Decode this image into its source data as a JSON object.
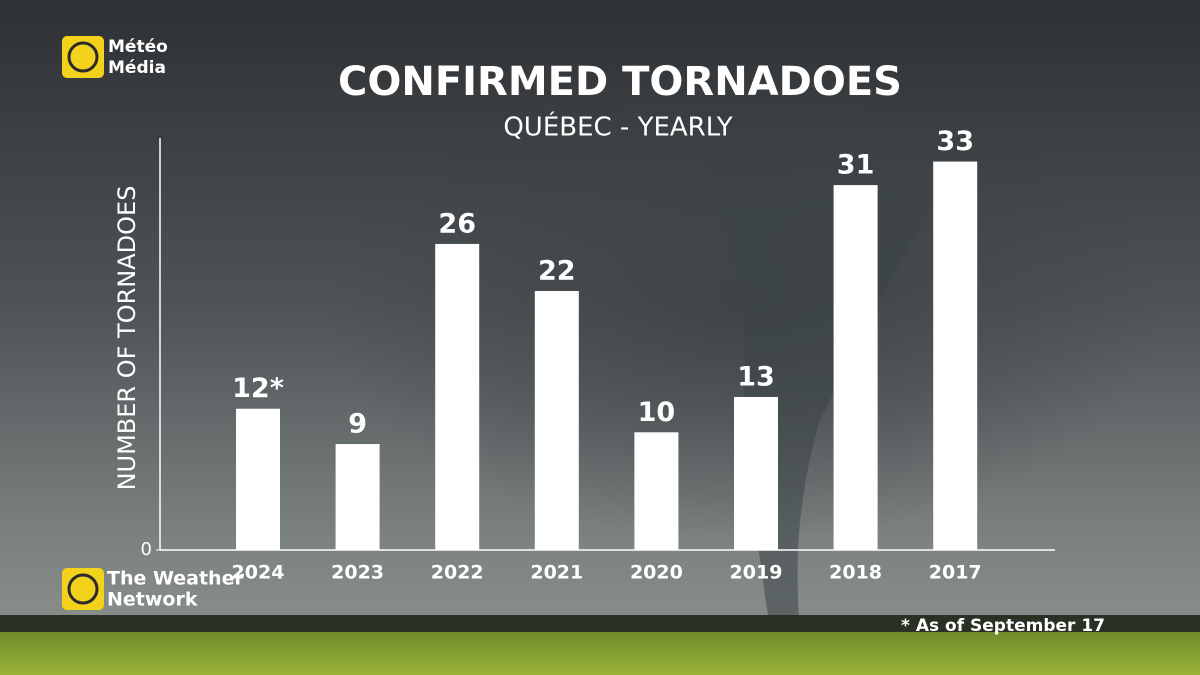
{
  "chart_data": {
    "type": "bar",
    "title": "CONFIRMED TORNADOES",
    "subtitle": "QUÉBEC - YEARLY",
    "y_label": "NUMBER OF TORNADOES",
    "categories": [
      "2024",
      "2023",
      "2022",
      "2021",
      "2020",
      "2019",
      "2018",
      "2017"
    ],
    "values": [
      12,
      9,
      26,
      22,
      10,
      13,
      31,
      33
    ],
    "value_labels": [
      "12*",
      "9",
      "26",
      "22",
      "10",
      "13",
      "31",
      "33"
    ],
    "color": "#ffffff",
    "ylim": [
      0,
      35
    ],
    "yticks": [
      0
    ],
    "grid": false,
    "footnote": "* As of September 17"
  },
  "logos": {
    "top": [
      "Météo",
      "Média"
    ],
    "bottom": [
      "The Weather",
      "Network"
    ]
  }
}
